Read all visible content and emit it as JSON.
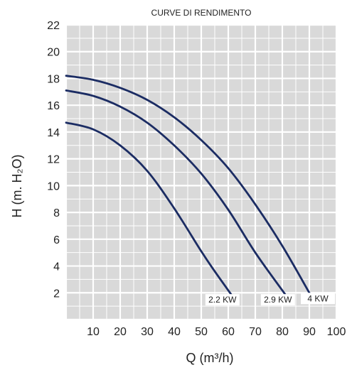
{
  "chart_data": {
    "type": "line",
    "title": "CURVE DI RENDIMENTO",
    "xlabel": "Q (m³/h)",
    "ylabel": "H (m. H₂O)",
    "xlim": [
      0,
      100
    ],
    "ylim": [
      0,
      22
    ],
    "x_ticks": [
      10,
      20,
      30,
      40,
      50,
      60,
      70,
      80,
      90,
      100
    ],
    "y_ticks": [
      2,
      4,
      6,
      8,
      10,
      12,
      14,
      16,
      18,
      20,
      22
    ],
    "grid": true,
    "colors": {
      "curve": "#1b2c63",
      "grid_bg": "#d9d9d9",
      "grid_line": "#ffffff"
    },
    "series": [
      {
        "name": "2.2 KW",
        "x": [
          0,
          10,
          20,
          30,
          40,
          50,
          55,
          61
        ],
        "y": [
          14.7,
          14.2,
          13.0,
          11.1,
          8.3,
          5.1,
          3.6,
          1.9
        ]
      },
      {
        "name": "2.9 KW",
        "x": [
          0,
          10,
          20,
          30,
          40,
          50,
          60,
          70,
          81
        ],
        "y": [
          17.1,
          16.7,
          15.9,
          14.7,
          13.0,
          10.9,
          8.2,
          5.0,
          1.9
        ]
      },
      {
        "name": "4 KW",
        "x": [
          0,
          10,
          20,
          30,
          40,
          50,
          60,
          70,
          80,
          90
        ],
        "y": [
          18.2,
          17.9,
          17.3,
          16.4,
          15.1,
          13.4,
          11.3,
          8.6,
          5.5,
          2.0
        ]
      }
    ]
  }
}
